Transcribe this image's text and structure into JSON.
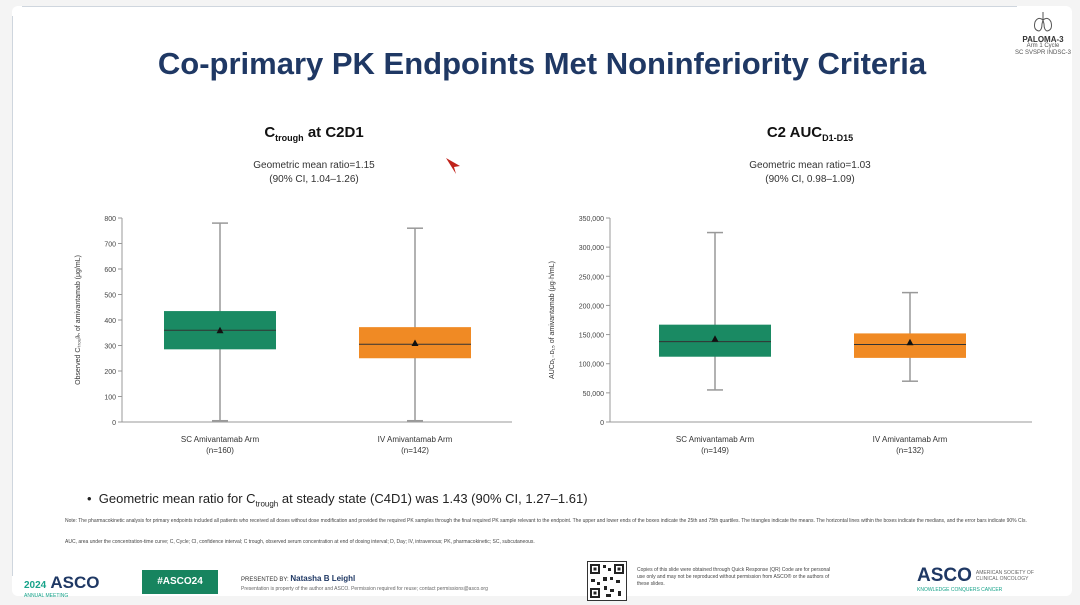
{
  "title": "Co-primary PK Endpoints Met Noninferiority Criteria",
  "logo": {
    "brand": "PALOMA-3",
    "line1": "Arm 1 Cycle",
    "line2": "SC SVSPR INDSC-3"
  },
  "colors": {
    "sc": "#1a8a63",
    "iv": "#f08a24",
    "title": "#1f3864"
  },
  "chart_data": [
    {
      "type": "box",
      "title_main": "C",
      "title_sub": "trough",
      "title_rest": " at C2D1",
      "ratio_line1": "Geometric mean ratio=1.15",
      "ratio_line2": "(90% CI, 1.04–1.26)",
      "ylabel": "Observed Cₜᵣₒᵤᵍₕ of amivantamab (μg/mL)",
      "ylim": [
        0,
        800
      ],
      "yticks": [
        "0",
        "100",
        "200",
        "300",
        "400",
        "500",
        "600",
        "700",
        "800"
      ],
      "tick_values": [
        0,
        100,
        200,
        300,
        400,
        500,
        600,
        700,
        800
      ],
      "categories": [
        {
          "label1": "SC Amivantamab Arm",
          "label2": "(n=160)"
        },
        {
          "label1": "IV Amivantamab Arm",
          "label2": "(n=142)"
        }
      ],
      "series": [
        {
          "min": 5,
          "q1": 285,
          "median": 360,
          "q3": 435,
          "max": 780,
          "mean": 358
        },
        {
          "min": 5,
          "q1": 250,
          "median": 305,
          "q3": 372,
          "max": 760,
          "mean": 308
        }
      ]
    },
    {
      "type": "box",
      "title_main": "C2 AUC",
      "title_sub": "D1-D15",
      "title_rest": "",
      "ratio_line1": "Geometric mean ratio=1.03",
      "ratio_line2": "(90% CI, 0.98–1.09)",
      "ylabel": "AUCᴅ₁₋ᴅ₁₅ of amivantamab (μg·h/mL)",
      "ylim": [
        0,
        350000
      ],
      "yticks": [
        "0",
        "50,000",
        "100,000",
        "150,000",
        "200,000",
        "250,000",
        "300,000",
        "350,000"
      ],
      "tick_values": [
        0,
        50000,
        100000,
        150000,
        200000,
        250000,
        300000,
        350000
      ],
      "categories": [
        {
          "label1": "SC Amivantamab Arm",
          "label2": "(n=149)"
        },
        {
          "label1": "IV Amivantamab Arm",
          "label2": "(n=132)"
        }
      ],
      "series": [
        {
          "min": 55000,
          "q1": 112000,
          "median": 138000,
          "q3": 167000,
          "max": 325000,
          "mean": 142000
        },
        {
          "min": 70000,
          "q1": 110000,
          "median": 133000,
          "q3": 152000,
          "max": 222000,
          "mean": 136000
        }
      ]
    }
  ],
  "bullet": {
    "pre": "Geometric mean ratio for C",
    "sub": "trough",
    "post": " at steady state (C4D1) was 1.43 (90% CI, 1.27–1.61)"
  },
  "footnote1": "Note: The pharmacokinetic analysis for primary endpoints included all patients who received all doses without dose modification and provided the required PK samples through the final required PK sample relevant to the endpoint. The upper and lower ends of the boxes indicate the 25th and 75th quartiles. The triangles indicate the means. The horizontal lines within the boxes indicate the medians, and the error bars indicate 90% CIs.",
  "footnote2": "AUC, area under the concentration-time curve; C, Cycle; CI, confidence interval; C trough, observed serum concentration at end of dosing interval; D, Day; IV, intravenous; PK, pharmacokinetic; SC, subcutaneous.",
  "footer": {
    "asco_left": "ASCO",
    "year": "2024",
    "asco_left_sub": "ANNUAL MEETING",
    "hashtag": "#ASCO24",
    "presented_by": "PRESENTED BY:",
    "presenter": "Natasha B Leighl",
    "presenter_note": "Presentation is property of the author and ASCO. Permission required for reuse; contact permissions@asco.org",
    "copies": "Copies of this slide were obtained through Quick Response (QR) Code are for personal use only and may not be reproduced without permission from ASCO® or the authors of these slides.",
    "asco_right": "ASCO",
    "asco_right_tag": "AMERICAN SOCIETY OF CLINICAL ONCOLOGY",
    "asco_right_sub": "KNOWLEDGE CONQUERS CANCER"
  }
}
